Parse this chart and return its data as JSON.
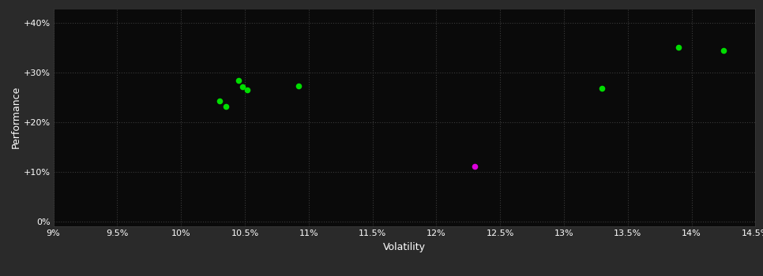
{
  "fig_bg_color": "#2a2a2a",
  "plot_bg_color": "#0a0a0a",
  "grid_color": "#3a3a3a",
  "text_color": "#ffffff",
  "xlabel": "Volatility",
  "ylabel": "Performance",
  "x_ticks": [
    0.09,
    0.095,
    0.1,
    0.105,
    0.11,
    0.115,
    0.12,
    0.125,
    0.13,
    0.135,
    0.14,
    0.145
  ],
  "x_tick_labels": [
    "9%",
    "9.5%",
    "10%",
    "10.5%",
    "11%",
    "11.5%",
    "12%",
    "12.5%",
    "13%",
    "13.5%",
    "14%",
    "14.5%"
  ],
  "y_ticks": [
    0.0,
    0.1,
    0.2,
    0.3,
    0.4
  ],
  "y_tick_labels": [
    "0%",
    "+10%",
    "+20%",
    "+30%",
    "+40%"
  ],
  "xlim": [
    0.09,
    0.145
  ],
  "ylim": [
    -0.01,
    0.43
  ],
  "green_points": [
    [
      0.103,
      0.243
    ],
    [
      0.1035,
      0.232
    ],
    [
      0.1045,
      0.285
    ],
    [
      0.1048,
      0.272
    ],
    [
      0.1052,
      0.265
    ],
    [
      0.1092,
      0.274
    ],
    [
      0.133,
      0.268
    ],
    [
      0.139,
      0.352
    ],
    [
      0.1425,
      0.345
    ]
  ],
  "magenta_points": [
    [
      0.123,
      0.111
    ]
  ],
  "dot_size": 30,
  "green_color": "#00dd00",
  "magenta_color": "#dd00dd",
  "grid_linestyle": ":",
  "grid_linewidth": 0.8,
  "font_size_ticks": 8,
  "font_size_labels": 9
}
